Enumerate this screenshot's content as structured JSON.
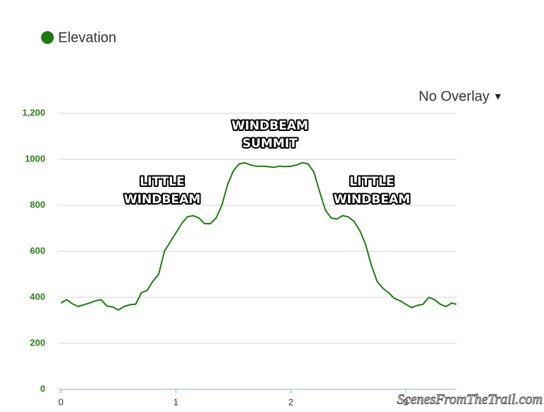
{
  "chart_data": {
    "type": "line",
    "legend": "Elevation",
    "overlay": "No Overlay",
    "watermark": "ScenesFromTheTrail.com",
    "annotations": [
      [
        "WINDBEAM",
        "SUMMIT"
      ],
      [
        "LITTLE",
        "WINDBEAM"
      ],
      [
        "LITTLE",
        "WINDBEAM"
      ]
    ],
    "x": [
      0,
      0.05,
      0.1,
      0.15,
      0.2,
      0.25,
      0.3,
      0.35,
      0.4,
      0.45,
      0.5,
      0.55,
      0.6,
      0.65,
      0.7,
      0.75,
      0.8,
      0.85,
      0.9,
      0.95,
      1.0,
      1.05,
      1.1,
      1.15,
      1.2,
      1.25,
      1.3,
      1.35,
      1.4,
      1.45,
      1.5,
      1.55,
      1.6,
      1.65,
      1.7,
      1.75,
      1.8,
      1.85,
      1.9,
      1.95,
      2.0,
      2.05,
      2.1,
      2.15,
      2.2,
      2.25,
      2.3,
      2.35,
      2.4,
      2.45,
      2.5,
      2.55,
      2.6,
      2.65,
      2.7,
      2.75,
      2.8,
      2.85,
      2.9,
      2.95,
      3.0,
      3.05,
      3.1,
      3.15,
      3.2,
      3.25,
      3.3,
      3.35,
      3.4,
      3.44
    ],
    "series": [
      {
        "name": "Elevation",
        "color": "#1f7a12",
        "values": [
          375,
          390,
          372,
          360,
          368,
          375,
          385,
          390,
          362,
          358,
          345,
          360,
          368,
          370,
          420,
          430,
          470,
          500,
          600,
          640,
          680,
          720,
          750,
          755,
          745,
          720,
          720,
          745,
          800,
          890,
          950,
          980,
          985,
          975,
          970,
          970,
          968,
          965,
          970,
          968,
          970,
          975,
          985,
          980,
          945,
          860,
          780,
          745,
          740,
          755,
          750,
          730,
          690,
          630,
          540,
          470,
          440,
          420,
          395,
          385,
          370,
          355,
          365,
          370,
          400,
          390,
          370,
          360,
          375,
          370
        ]
      }
    ],
    "xlim": [
      0,
      3.44
    ],
    "xticks": [
      0,
      1,
      2,
      3
    ],
    "ylim": [
      0,
      1200
    ],
    "yticks": [
      0,
      200,
      400,
      600,
      800,
      1000,
      {
        "value": 1200,
        "label": "1,200"
      }
    ],
    "grid": true
  }
}
